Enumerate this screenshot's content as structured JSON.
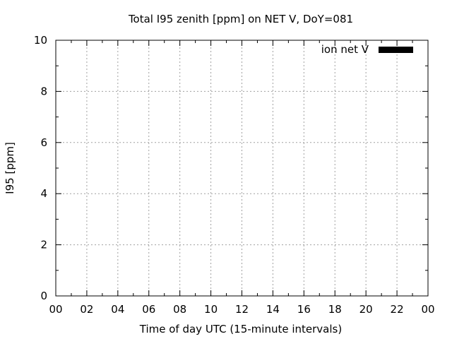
{
  "chart_data": {
    "type": "bar",
    "title": "Total I95 zenith [ppm] on NET V, DoY=081",
    "xlabel": "Time of day UTC (15-minute intervals)",
    "ylabel": "I95 [ppm]",
    "x_ticks": [
      "00",
      "02",
      "04",
      "06",
      "08",
      "10",
      "12",
      "14",
      "16",
      "18",
      "20",
      "22",
      "00"
    ],
    "xlim": [
      0,
      24
    ],
    "y_ticks": [
      0,
      2,
      4,
      6,
      8,
      10
    ],
    "ylim": [
      0,
      10
    ],
    "grid": true,
    "legend_position": "top-right",
    "series": [
      {
        "name": "ion net V",
        "color": "#000000",
        "values": []
      }
    ]
  }
}
